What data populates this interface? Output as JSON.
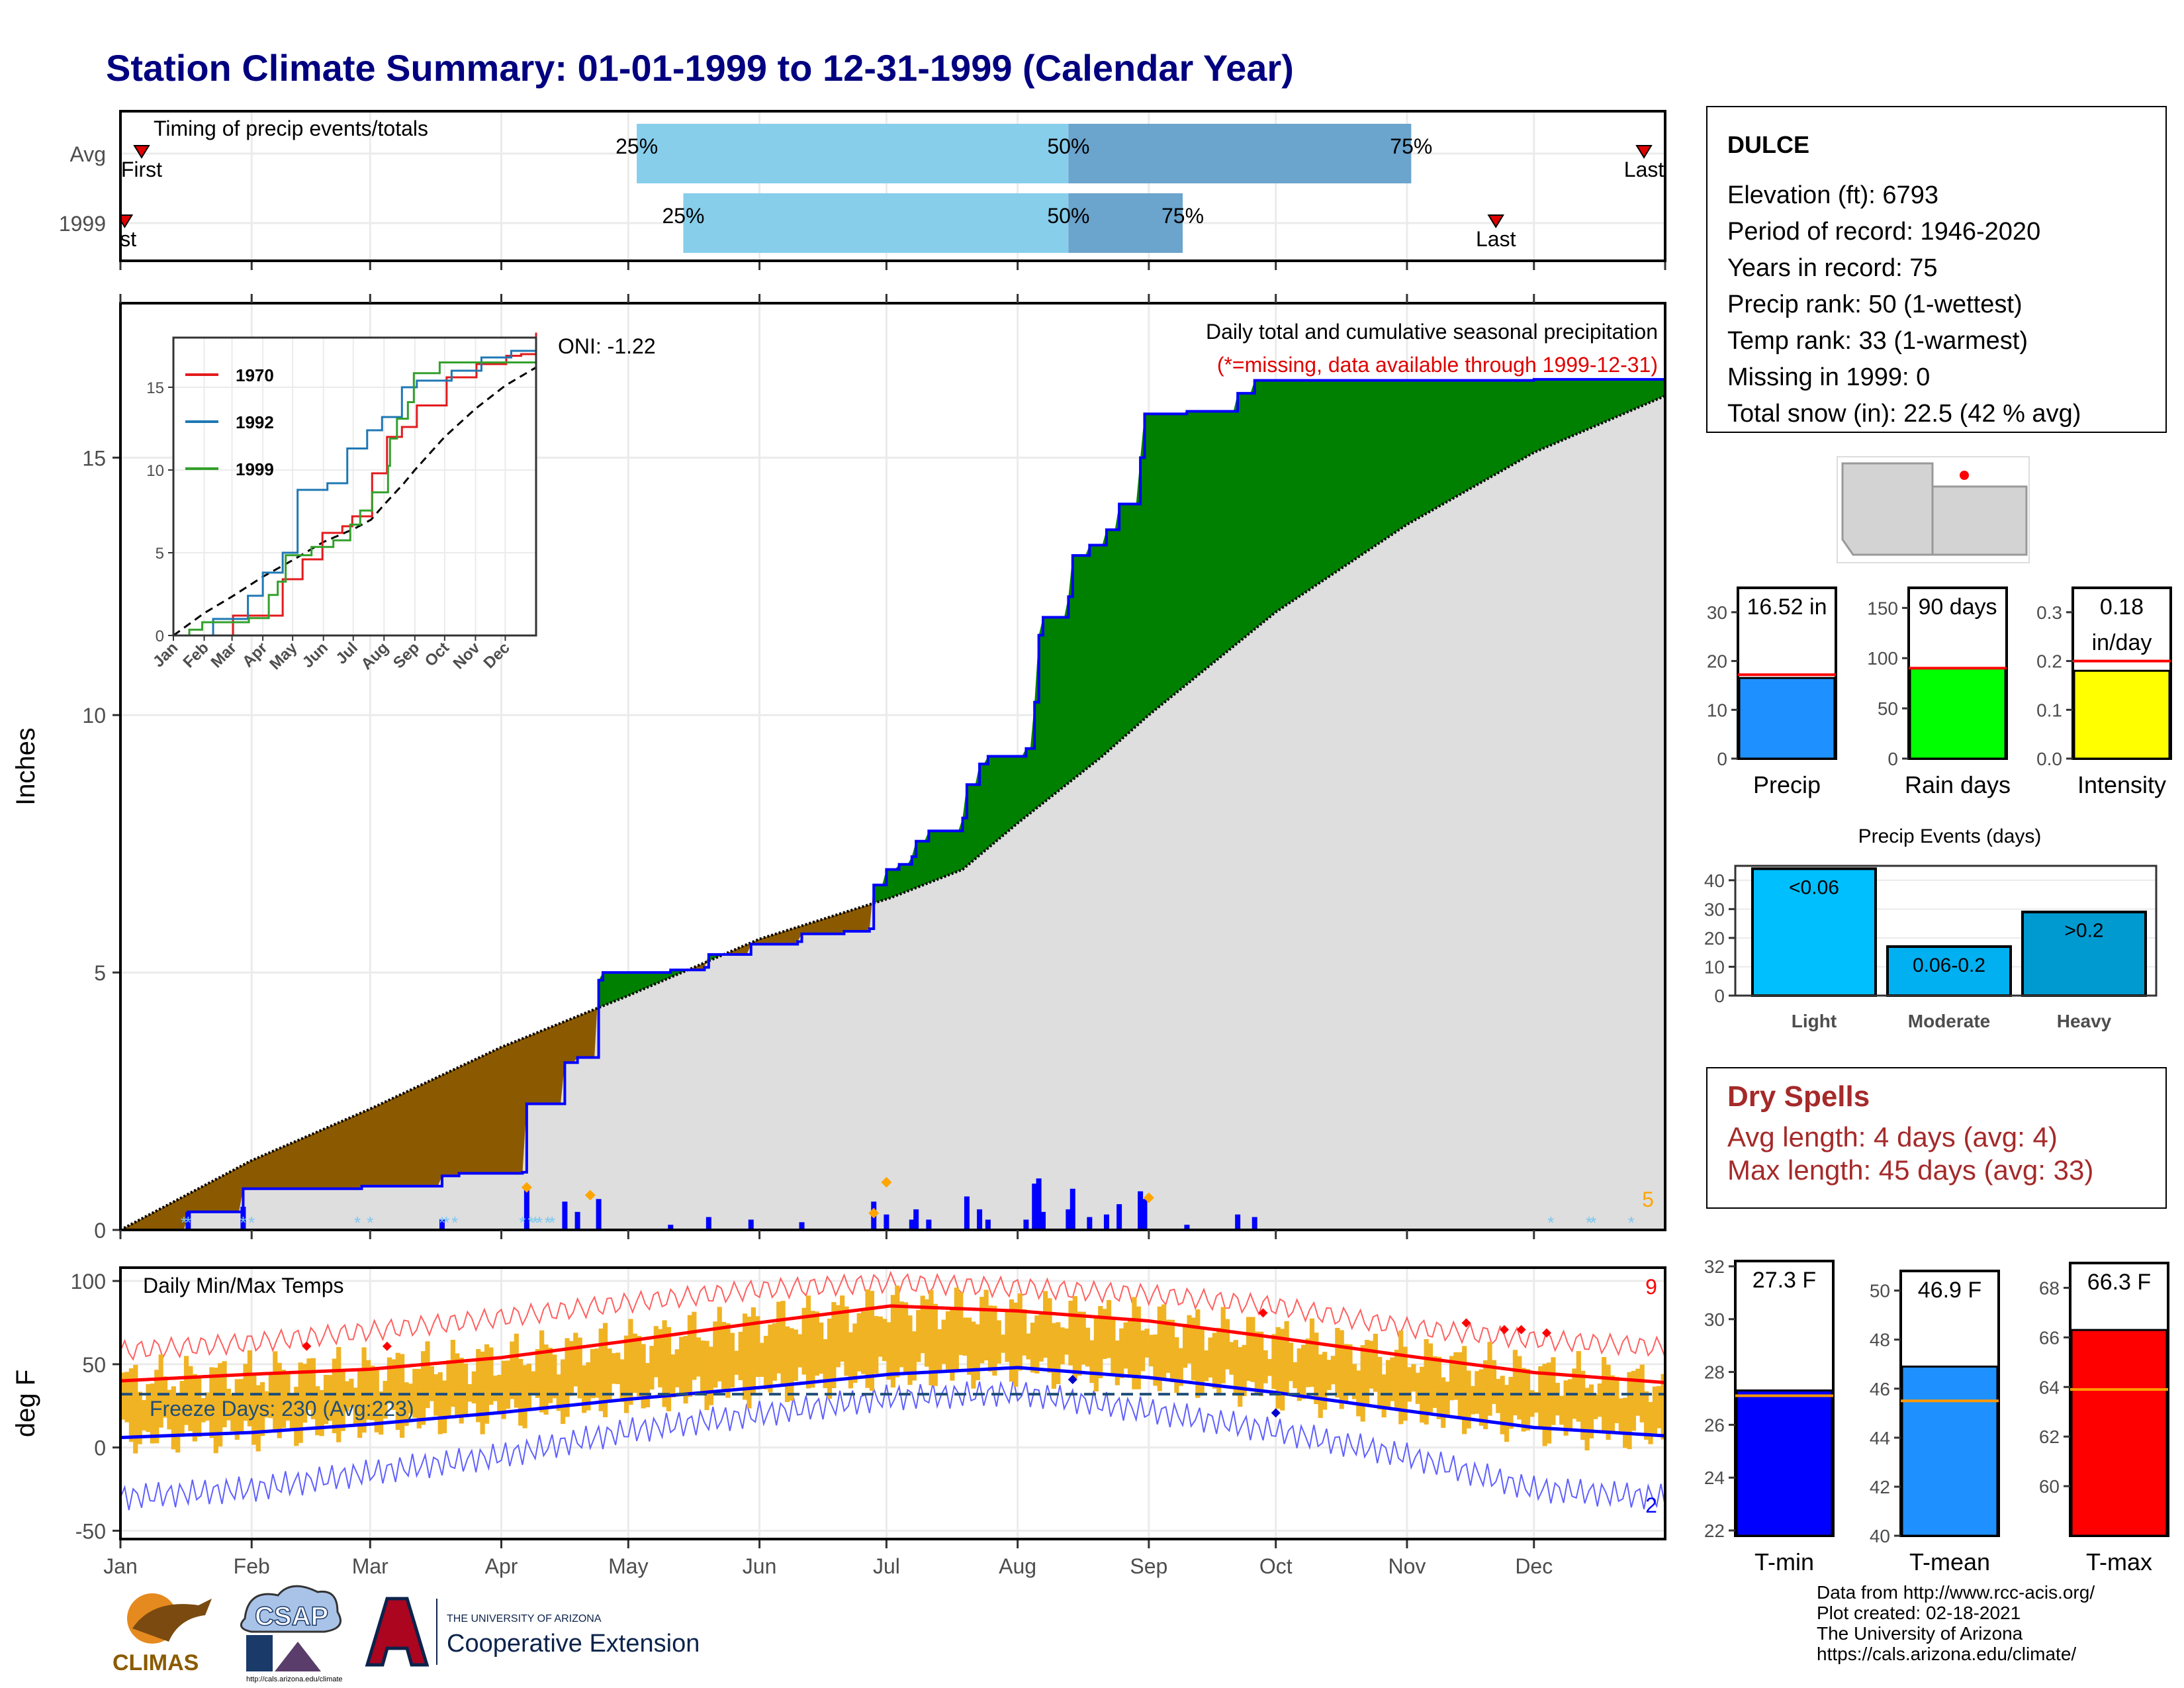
{
  "title": "Station Climate Summary: 01-01-1999 to 12-31-1999 (Calendar Year)",
  "colors": {
    "title": "#000080",
    "avg_bar_light": "#87ceeb",
    "avg_bar_dark": "#6ba4cc",
    "above_normal": "#008000",
    "below_normal": "#8b5a00",
    "cum_line": "#0000ff",
    "temp_bars": "#f0b323",
    "tmax_line": "#ff0000",
    "tmin_line": "#0000ff",
    "precip_bar": "#1e90ff",
    "rain_bar": "#00ff00",
    "intensity_bar": "#ffff00",
    "light_bar": "#00bfff",
    "moderate_bar": "#00b0f0",
    "heavy_bar": "#009ad0",
    "tmin_bar": "#0000ff",
    "tmean_bar": "#1e90ff",
    "tmax_bar": "#ff0000",
    "dry_text": "#a52a2a"
  },
  "station": {
    "name": "DULCE",
    "lines": [
      "Elevation (ft): 6793",
      "Period of record: 1946-2020",
      "Years in record: 75",
      "Precip rank: 50 (1-wettest)",
      "Temp rank: 33 (1-warmest)",
      "Missing in 1999: 0",
      "Total snow (in): 22.5 (42 % avg)"
    ]
  },
  "dry_spells": {
    "heading": "Dry Spells",
    "avg_length": "Avg length: 4 days (avg: 4)",
    "max_length": "Max length: 45 days (avg: 33)"
  },
  "credits": [
    "Data from http://www.rcc-acis.org/",
    "Plot created: 02-18-2021",
    "The University of Arizona",
    "https://cals.arizona.edu/climate/"
  ],
  "logos": {
    "climas": "CLIMAS",
    "csap": "CSAP",
    "ua_small": "THE UNIVERSITY OF ARIZONA",
    "ua_big": "Cooperative Extension",
    "csap_url": "http://cals.arizona.edu/climate"
  },
  "chart_data": [
    {
      "type": "bar",
      "id": "timing",
      "title": "Timing of precip events/totals",
      "categories": [
        "Avg",
        "1999"
      ],
      "quantiles": {
        "Avg": {
          "first_day": 5,
          "q25": 122,
          "q50": 224,
          "q75": 305,
          "last_day": 360
        },
        "1999": {
          "first_day": 1,
          "q25": 133,
          "q50": 224,
          "q75": 251,
          "last_day": 325
        }
      },
      "labels": {
        "q25": "25%",
        "q50": "50%",
        "q75": "75%",
        "first": "First",
        "last": "Last",
        "first_cut": "rst"
      }
    },
    {
      "type": "area",
      "id": "cumulative",
      "title": "Daily total and cumulative seasonal precipitation",
      "subtitle": "(*=missing, data available through 1999-12-31)",
      "oni": "ONI: -1.22",
      "ylabel": "Inches",
      "ylim": [
        0,
        18
      ],
      "yticks": [
        0,
        5,
        10,
        15
      ],
      "months": [
        "Jan",
        "Feb",
        "Mar",
        "Apr",
        "May",
        "Jun",
        "Jul",
        "Aug",
        "Sep",
        "Oct",
        "Nov",
        "Dec"
      ],
      "snow_days_label": "5",
      "normal": [
        [
          0,
          0
        ],
        [
          31,
          1.35
        ],
        [
          59,
          2.35
        ],
        [
          90,
          3.55
        ],
        [
          120,
          4.55
        ],
        [
          151,
          5.65
        ],
        [
          182,
          6.45
        ],
        [
          199,
          7.0
        ],
        [
          212,
          7.9
        ],
        [
          232,
          9.2
        ],
        [
          243,
          10.0
        ],
        [
          273,
          12.0
        ],
        [
          304,
          13.7
        ],
        [
          334,
          15.1
        ],
        [
          365,
          16.2
        ]
      ],
      "cumulative_1999": [
        [
          0,
          0
        ],
        [
          16,
          0.35
        ],
        [
          29,
          0.8
        ],
        [
          56,
          0.8
        ],
        [
          57,
          0.85
        ],
        [
          75,
          0.85
        ],
        [
          76,
          1.05
        ],
        [
          77,
          1.05
        ],
        [
          79,
          1.05
        ],
        [
          80,
          1.1
        ],
        [
          95,
          1.12
        ],
        [
          96,
          2.45
        ],
        [
          104,
          2.45
        ],
        [
          105,
          3.25
        ],
        [
          108,
          3.35
        ],
        [
          113,
          4.85
        ],
        [
          114,
          5.0
        ],
        [
          129,
          5.0
        ],
        [
          130,
          5.05
        ],
        [
          138,
          5.1
        ],
        [
          139,
          5.35
        ],
        [
          148,
          5.35
        ],
        [
          149,
          5.55
        ],
        [
          160,
          5.6
        ],
        [
          161,
          5.75
        ],
        [
          170,
          5.75
        ],
        [
          171,
          5.8
        ],
        [
          177,
          5.85
        ],
        [
          178,
          6.7
        ],
        [
          181,
          7.0
        ],
        [
          184,
          7.1
        ],
        [
          187,
          7.25
        ],
        [
          188,
          7.55
        ],
        [
          191,
          7.75
        ],
        [
          199,
          8.0
        ],
        [
          200,
          8.65
        ],
        [
          203,
          9.05
        ],
        [
          205,
          9.2
        ],
        [
          214,
          9.35
        ],
        [
          216,
          10.25
        ],
        [
          217,
          11.55
        ],
        [
          218,
          11.9
        ],
        [
          224,
          12.3
        ],
        [
          225,
          13.1
        ],
        [
          229,
          13.3
        ],
        [
          233,
          13.6
        ],
        [
          236,
          14.1
        ],
        [
          241,
          15.0
        ],
        [
          242,
          15.85
        ],
        [
          252,
          15.9
        ],
        [
          264,
          16.25
        ],
        [
          268,
          16.5
        ],
        [
          334,
          16.52
        ],
        [
          365,
          16.52
        ]
      ],
      "daily_bars": [
        [
          16,
          0.35
        ],
        [
          29,
          0.45
        ],
        [
          76,
          0.2
        ],
        [
          96,
          0.8
        ],
        [
          105,
          0.55
        ],
        [
          108,
          0.35
        ],
        [
          113,
          0.6
        ],
        [
          130,
          0.1
        ],
        [
          139,
          0.25
        ],
        [
          149,
          0.2
        ],
        [
          161,
          0.15
        ],
        [
          178,
          0.55
        ],
        [
          181,
          0.3
        ],
        [
          187,
          0.2
        ],
        [
          188,
          0.4
        ],
        [
          191,
          0.2
        ],
        [
          200,
          0.65
        ],
        [
          203,
          0.4
        ],
        [
          205,
          0.2
        ],
        [
          214,
          0.2
        ],
        [
          216,
          0.9
        ],
        [
          217,
          1.0
        ],
        [
          218,
          0.35
        ],
        [
          224,
          0.4
        ],
        [
          225,
          0.8
        ],
        [
          229,
          0.25
        ],
        [
          233,
          0.3
        ],
        [
          236,
          0.5
        ],
        [
          241,
          0.75
        ],
        [
          242,
          0.6
        ],
        [
          252,
          0.1
        ],
        [
          264,
          0.3
        ],
        [
          268,
          0.25
        ]
      ],
      "inset": {
        "xticks": [
          "Jan",
          "Feb",
          "Mar",
          "Apr",
          "May",
          "Jun",
          "Jul",
          "Aug",
          "Sep",
          "Oct",
          "Nov",
          "Dec"
        ],
        "yticks": [
          0,
          5,
          10,
          15
        ],
        "ylim": [
          0,
          18
        ],
        "series": [
          {
            "name": "1970",
            "color": "#e31a1c",
            "values": [
              [
                0,
                0
              ],
              [
                60,
                1.2
              ],
              [
                110,
                3.4
              ],
              [
                130,
                4.6
              ],
              [
                150,
                6.2
              ],
              [
                170,
                6.6
              ],
              [
                180,
                7.2
              ],
              [
                200,
                9.8
              ],
              [
                215,
                12.0
              ],
              [
                230,
                12.6
              ],
              [
                245,
                13.9
              ],
              [
                275,
                15.6
              ],
              [
                305,
                16.4
              ],
              [
                335,
                16.9
              ],
              [
                350,
                17.0
              ],
              [
                365,
                18.3
              ]
            ]
          },
          {
            "name": "1992",
            "color": "#1f78b4",
            "values": [
              [
                0,
                0
              ],
              [
                40,
                1.0
              ],
              [
                75,
                2.4
              ],
              [
                90,
                3.8
              ],
              [
                110,
                5.0
              ],
              [
                125,
                8.8
              ],
              [
                155,
                9.2
              ],
              [
                175,
                11.3
              ],
              [
                195,
                12.4
              ],
              [
                210,
                13.2
              ],
              [
                230,
                15.0
              ],
              [
                245,
                15.4
              ],
              [
                280,
                16.0
              ],
              [
                310,
                16.8
              ],
              [
                340,
                17.2
              ],
              [
                365,
                18.0
              ]
            ]
          },
          {
            "name": "1999",
            "color": "#33a02c",
            "values": [
              [
                0,
                0
              ],
              [
                16,
                0.35
              ],
              [
                29,
                0.8
              ],
              [
                76,
                1.05
              ],
              [
                96,
                2.45
              ],
              [
                105,
                3.25
              ],
              [
                113,
                4.85
              ],
              [
                139,
                5.35
              ],
              [
                161,
                5.75
              ],
              [
                178,
                6.7
              ],
              [
                188,
                7.55
              ],
              [
                200,
                8.65
              ],
              [
                216,
                10.25
              ],
              [
                218,
                11.9
              ],
              [
                225,
                13.1
              ],
              [
                236,
                14.1
              ],
              [
                242,
                15.85
              ],
              [
                268,
                16.5
              ],
              [
                365,
                16.52
              ]
            ]
          }
        ]
      }
    },
    {
      "type": "bar",
      "id": "precip_summary",
      "panels": [
        {
          "label": "Precip",
          "value_text": "16.52 in",
          "value": 16.52,
          "normal": 17.2,
          "ylim": [
            0,
            35
          ],
          "yticks": [
            0,
            10,
            20,
            30
          ]
        },
        {
          "label": "Rain days",
          "value_text": "90 days",
          "value": 90,
          "normal": 90,
          "ylim": [
            0,
            170
          ],
          "yticks": [
            0,
            50,
            100,
            150
          ]
        },
        {
          "label": "Intensity",
          "value_text": "0.18 in/day",
          "value_lines": [
            "0.18",
            "in/day"
          ],
          "value": 0.18,
          "normal": 0.2,
          "ylim": [
            0,
            0.35
          ],
          "yticks": [
            0.0,
            0.1,
            0.2,
            0.3
          ]
        }
      ]
    },
    {
      "type": "bar",
      "id": "precip_events",
      "title": "Precip Events (days)",
      "categories": [
        "Light",
        "Moderate",
        "Heavy"
      ],
      "bar_labels": [
        "<0.06",
        "0.06-0.2",
        ">0.2"
      ],
      "values": [
        44,
        17,
        29
      ],
      "ylim": [
        0,
        45
      ],
      "yticks": [
        0,
        10,
        20,
        30,
        40
      ]
    },
    {
      "type": "bar",
      "id": "daily_temps",
      "title": "Daily Min/Max Temps",
      "ylabel": "deg F",
      "ylim": [
        -55,
        108
      ],
      "yticks": [
        -50,
        0,
        50,
        100
      ],
      "months": [
        "Jan",
        "Feb",
        "Mar",
        "Apr",
        "May",
        "Jun",
        "Jul",
        "Aug",
        "Sep",
        "Oct",
        "Nov",
        "Dec"
      ],
      "freeze_label": "Freeze Days: 230 (Avg:223)",
      "freeze_line": 32,
      "record_high_count": "9",
      "record_low_count": "2",
      "normal_tmax": [
        [
          0,
          40
        ],
        [
          31,
          44
        ],
        [
          59,
          47
        ],
        [
          90,
          54
        ],
        [
          120,
          64
        ],
        [
          151,
          75
        ],
        [
          182,
          85
        ],
        [
          212,
          82
        ],
        [
          243,
          76
        ],
        [
          273,
          66
        ],
        [
          304,
          55
        ],
        [
          334,
          45
        ],
        [
          365,
          39
        ]
      ],
      "normal_tmin": [
        [
          0,
          6
        ],
        [
          31,
          9
        ],
        [
          59,
          14
        ],
        [
          90,
          21
        ],
        [
          120,
          29
        ],
        [
          151,
          36
        ],
        [
          182,
          44
        ],
        [
          212,
          48
        ],
        [
          243,
          42
        ],
        [
          273,
          33
        ],
        [
          304,
          22
        ],
        [
          334,
          12
        ],
        [
          365,
          7
        ]
      ],
      "record_max": [
        [
          0,
          58
        ],
        [
          31,
          63
        ],
        [
          59,
          70
        ],
        [
          90,
          78
        ],
        [
          120,
          87
        ],
        [
          151,
          95
        ],
        [
          182,
          99
        ],
        [
          212,
          96
        ],
        [
          243,
          92
        ],
        [
          273,
          85
        ],
        [
          304,
          72
        ],
        [
          334,
          65
        ],
        [
          365,
          60
        ]
      ],
      "record_min": [
        [
          0,
          -30
        ],
        [
          31,
          -25
        ],
        [
          59,
          -15
        ],
        [
          90,
          -5
        ],
        [
          120,
          10
        ],
        [
          151,
          20
        ],
        [
          182,
          30
        ],
        [
          212,
          33
        ],
        [
          243,
          22
        ],
        [
          273,
          10
        ],
        [
          304,
          -5
        ],
        [
          334,
          -25
        ],
        [
          365,
          -30
        ]
      ]
    },
    {
      "type": "bar",
      "id": "temp_summary",
      "panels": [
        {
          "label": "T-min",
          "value_text": "27.3 F",
          "value": 27.3,
          "normal": 27.1,
          "ylim": [
            21.8,
            32.2
          ],
          "yticks": [
            22,
            24,
            26,
            28,
            30,
            32
          ],
          "color": "#0000ff"
        },
        {
          "label": "T-mean",
          "value_text": "46.9 F",
          "value": 46.9,
          "normal": 45.5,
          "ylim": [
            40,
            50.8
          ],
          "yticks": [
            40,
            42,
            44,
            46,
            48,
            50
          ],
          "color": "#1e90ff"
        },
        {
          "label": "T-max",
          "value_text": "66.3 F",
          "value": 66.3,
          "normal": 63.9,
          "ylim": [
            58,
            69
          ],
          "yticks": [
            60,
            62,
            64,
            66,
            68
          ],
          "color": "#ff0000"
        }
      ]
    }
  ]
}
